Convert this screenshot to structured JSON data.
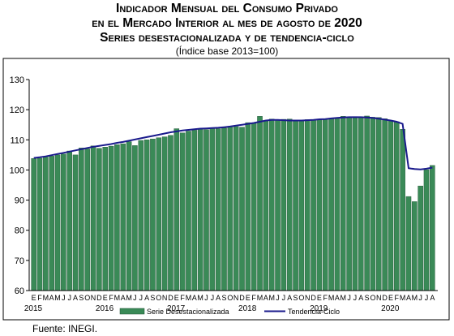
{
  "titles": {
    "line1": "Indicador Mensual del Consumo Privado",
    "line2": "en el Mercado Interior al mes de agosto de 2020",
    "line3": "Series desestacionalizada y de tendencia-ciclo",
    "line4": "(Índice base 2013=100)"
  },
  "source": "Fuente: INEGI.",
  "colors": {
    "bar": "#3a8a57",
    "bar_edge": "#1f5133",
    "line": "#1a1a8c",
    "frame": "#000000"
  },
  "chart_data": {
    "type": "bar",
    "y_axis": {
      "min": 60,
      "max": 130,
      "ticks": [
        60,
        70,
        80,
        90,
        100,
        110,
        120,
        130
      ]
    },
    "month_letters": [
      "E",
      "F",
      "M",
      "A",
      "M",
      "J",
      "J",
      "A",
      "S",
      "O",
      "N",
      "D"
    ],
    "years": [
      "2015",
      "2016",
      "2017",
      "2018",
      "2019",
      "2020"
    ],
    "series": [
      {
        "name": "Serie Desestacionalizada",
        "kind": "bar",
        "values": [
          103.8,
          103.9,
          104.3,
          104.6,
          105.0,
          105.3,
          106.3,
          105.0,
          107.3,
          107.0,
          108.0,
          107.2,
          107.6,
          107.9,
          108.4,
          108.7,
          109.4,
          108.1,
          109.8,
          110.0,
          110.3,
          110.7,
          111.0,
          111.5,
          113.7,
          112.3,
          112.9,
          113.2,
          113.6,
          113.4,
          113.8,
          113.7,
          113.9,
          114.3,
          114.4,
          114.2,
          115.7,
          115.5,
          117.8,
          116.2,
          116.9,
          116.6,
          116.8,
          116.9,
          116.4,
          116.6,
          116.7,
          116.5,
          116.8,
          116.9,
          117.1,
          117.4,
          117.8,
          117.4,
          117.7,
          117.5,
          117.9,
          117.5,
          117.4,
          117.0,
          116.3,
          116.0,
          113.5,
          91.2,
          89.5,
          94.7,
          100.1,
          101.5
        ]
      },
      {
        "name": "Tendencia-Ciclo",
        "kind": "line",
        "values": [
          104.0,
          104.2,
          104.5,
          104.9,
          105.3,
          105.7,
          106.1,
          106.5,
          106.9,
          107.3,
          107.7,
          108.0,
          108.3,
          108.6,
          109.0,
          109.3,
          109.7,
          110.1,
          110.5,
          110.9,
          111.3,
          111.7,
          112.1,
          112.5,
          112.8,
          113.1,
          113.3,
          113.5,
          113.7,
          113.8,
          113.9,
          114.0,
          114.2,
          114.4,
          114.7,
          115.0,
          115.3,
          115.6,
          116.0,
          116.4,
          116.6,
          116.6,
          116.5,
          116.4,
          116.4,
          116.4,
          116.5,
          116.6,
          116.8,
          116.9,
          117.1,
          117.3,
          117.4,
          117.5,
          117.5,
          117.5,
          117.4,
          117.3,
          117.0,
          116.7,
          116.4,
          116.0,
          115.3,
          100.6,
          100.3,
          100.2,
          100.4,
          100.8
        ]
      }
    ]
  }
}
